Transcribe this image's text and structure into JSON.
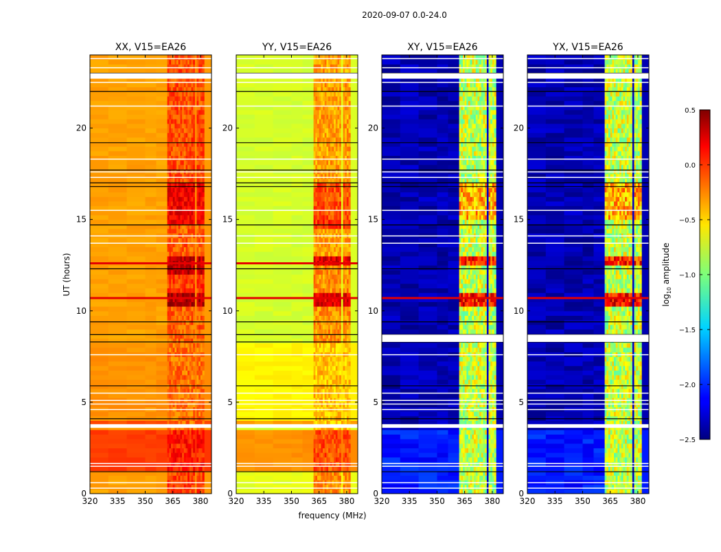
{
  "chart_data": {
    "type": "heatmap",
    "title": "2020-09-07 0.0-24.0",
    "xlabel": "frequency (MHz)",
    "ylabel": "UT (hours)",
    "xlim": [
      320,
      386
    ],
    "ylim": [
      0,
      24
    ],
    "xticks": [
      "320",
      "335",
      "350",
      "365",
      "380"
    ],
    "yticks": [
      "0",
      "5",
      "10",
      "15",
      "20"
    ],
    "colorbar": {
      "label": "log10 amplitude",
      "label_main": "log",
      "label_sub": "10",
      "label_rest": " amplitude",
      "range": [
        -2.5,
        0.5
      ],
      "ticks": [
        "0.5",
        "0.0",
        "−0.5",
        "−1.0",
        "−1.5",
        "−2.0",
        "−2.5"
      ],
      "tick_values": [
        0.5,
        0.0,
        -0.5,
        -1.0,
        -1.5,
        -2.0,
        -2.5
      ],
      "colormap": "jet"
    },
    "rfi_subbands_mhz": [
      [
        362,
        366.5
      ],
      [
        367.5,
        371.5
      ],
      [
        372.5,
        377
      ],
      [
        378,
        382
      ]
    ],
    "flagged_hours": [
      0.3,
      0.6,
      1.5,
      1.65,
      [
        3.6,
        3.8
      ],
      4.6,
      4.9,
      5.1,
      5.5,
      7.6,
      13.7,
      14.1,
      15.5,
      17.3,
      17.6,
      18.3,
      21.2,
      22.5,
      [
        22.7,
        23.0
      ],
      23.3,
      23.8
    ],
    "scan_boundaries_hours": [
      1.2,
      4.1,
      5.9,
      8.3,
      8.7,
      9.4,
      10.7,
      12.3,
      14.7,
      16.8,
      17.0,
      17.7,
      19.2,
      22.0,
      23.0
    ],
    "panels": [
      {
        "title": "XX, V15=EA26",
        "background": [
          [
            0,
            1.2,
            -0.35
          ],
          [
            1.2,
            3.6,
            -0.05
          ],
          [
            3.8,
            4.1,
            -0.1
          ],
          [
            4.1,
            8.3,
            -0.3
          ],
          [
            8.3,
            24,
            -0.35
          ]
        ],
        "band": [
          [
            0,
            1.2,
            -0.05
          ],
          [
            1.2,
            3.6,
            0.05
          ],
          [
            3.6,
            8.3,
            -0.2
          ],
          [
            8.3,
            10.2,
            -0.15
          ],
          [
            10.2,
            10.9,
            0.35
          ],
          [
            10.9,
            12.0,
            -0.05
          ],
          [
            12.0,
            13.0,
            0.3
          ],
          [
            13.0,
            14.7,
            -0.15
          ],
          [
            14.7,
            15.0,
            0.2
          ],
          [
            15.0,
            17.0,
            0.15
          ],
          [
            17.0,
            24,
            -0.1
          ]
        ],
        "rfi_rows": [
          10.7,
          12.6
        ],
        "white_block": false
      },
      {
        "title": "YY, V15=EA26",
        "background": [
          [
            0,
            1.2,
            -0.7
          ],
          [
            1.2,
            3.6,
            -0.3
          ],
          [
            3.8,
            4.1,
            -0.35
          ],
          [
            4.1,
            8.3,
            -0.6
          ],
          [
            8.3,
            24,
            -0.75
          ]
        ],
        "band": [
          [
            0,
            1.2,
            -0.3
          ],
          [
            1.2,
            3.6,
            -0.1
          ],
          [
            3.6,
            8.3,
            -0.45
          ],
          [
            8.3,
            10.2,
            -0.3
          ],
          [
            10.2,
            10.9,
            0.2
          ],
          [
            10.9,
            12.4,
            -0.3
          ],
          [
            12.4,
            13.0,
            0.2
          ],
          [
            13.0,
            14.5,
            -0.35
          ],
          [
            14.5,
            15.0,
            0.0
          ],
          [
            15.0,
            17.0,
            -0.1
          ],
          [
            17.0,
            24,
            -0.35
          ]
        ],
        "rfi_rows": [
          10.7,
          12.6
        ],
        "white_block": false
      },
      {
        "title": "XY, V15=EA26",
        "background": [
          [
            0,
            3.6,
            -2.05
          ],
          [
            3.6,
            24,
            -2.35
          ]
        ],
        "band": [
          [
            0,
            10.2,
            -0.8
          ],
          [
            10.2,
            10.9,
            0.1
          ],
          [
            10.9,
            12.4,
            -0.8
          ],
          [
            12.4,
            13.0,
            0.0
          ],
          [
            13.0,
            15.0,
            -0.8
          ],
          [
            15.0,
            17.0,
            -0.4
          ],
          [
            17.0,
            24,
            -0.8
          ]
        ],
        "rfi_rows": [
          10.7
        ],
        "white_block": true
      },
      {
        "title": "YX, V15=EA26",
        "background": [
          [
            0,
            3.6,
            -2.05
          ],
          [
            3.6,
            24,
            -2.35
          ]
        ],
        "band": [
          [
            0,
            10.2,
            -0.8
          ],
          [
            10.2,
            10.9,
            0.1
          ],
          [
            10.9,
            12.4,
            -0.8
          ],
          [
            12.4,
            13.0,
            0.0
          ],
          [
            13.0,
            15.0,
            -0.8
          ],
          [
            15.0,
            17.0,
            -0.4
          ],
          [
            17.0,
            24,
            -0.8
          ]
        ],
        "rfi_rows": [
          10.7
        ],
        "white_block": true
      }
    ]
  }
}
